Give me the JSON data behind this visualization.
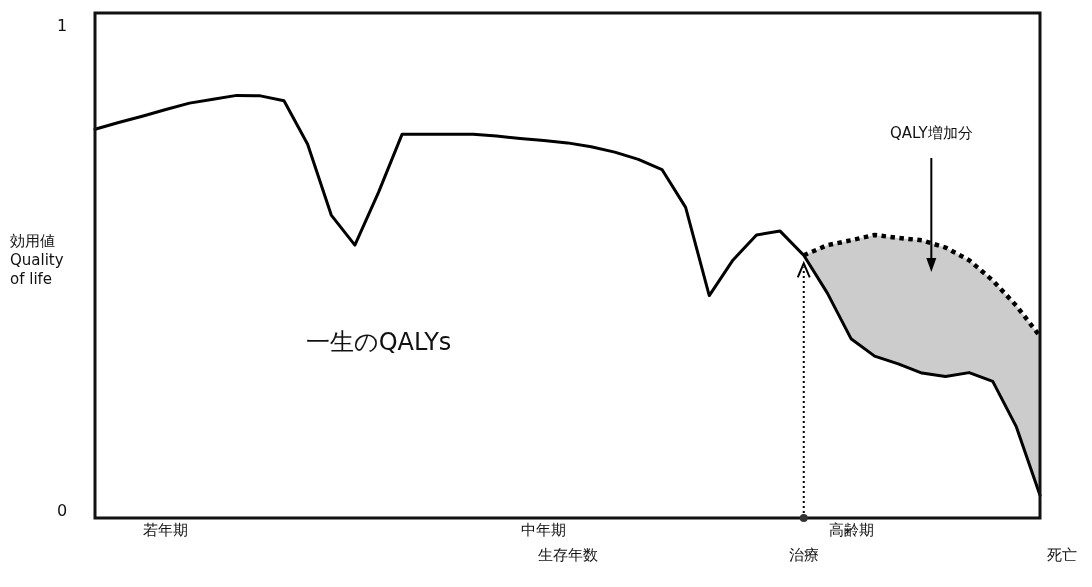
{
  "chart_data": {
    "type": "line",
    "xlabel": "生存年数",
    "ylabel": "効用値\nQuality\nof life",
    "ylim": [
      -0.017,
      1.025
    ],
    "yticks": [
      0,
      1
    ],
    "marker": "none",
    "categories": [
      null,
      null,
      null,
      "若年期",
      null,
      null,
      null,
      null,
      null,
      null,
      null,
      null,
      null,
      null,
      null,
      null,
      null,
      null,
      null,
      "中年期",
      null,
      null,
      null,
      null,
      null,
      null,
      null,
      null,
      null,
      null,
      null,
      null,
      "高齢期",
      null,
      null,
      null,
      null,
      null,
      null,
      null,
      null
    ],
    "series": [
      {
        "color": "#000000",
        "line_style": "solid",
        "values": [
          0.785,
          0.799,
          0.812,
          0.826,
          0.839,
          0.847,
          0.855,
          0.854,
          0.844,
          0.754,
          0.608,
          0.546,
          0.655,
          0.775,
          0.775,
          0.775,
          0.775,
          0.771,
          0.766,
          0.762,
          0.757,
          0.749,
          0.738,
          0.723,
          0.702,
          0.624,
          0.442,
          0.515,
          0.567,
          0.575,
          0.525,
          0.447,
          0.353,
          0.317,
          0.301,
          0.282,
          0.275,
          0.283,
          0.265,
          0.171,
          0.03
        ]
      },
      {
        "color": "#000000",
        "line_style": "dotted",
        "values": [
          null,
          null,
          null,
          null,
          null,
          null,
          null,
          null,
          null,
          null,
          null,
          null,
          null,
          null,
          null,
          null,
          null,
          null,
          null,
          null,
          null,
          null,
          null,
          null,
          null,
          null,
          null,
          null,
          null,
          null,
          0.525,
          0.546,
          0.556,
          0.567,
          0.561,
          0.556,
          0.541,
          0.515,
          0.473,
          0.421,
          0.358
        ],
        "lower": [
          null,
          null,
          null,
          null,
          null,
          null,
          null,
          null,
          null,
          null,
          null,
          null,
          null,
          null,
          null,
          null,
          null,
          null,
          null,
          null,
          null,
          null,
          null,
          null,
          null,
          null,
          null,
          null,
          null,
          null,
          0.525,
          0.447,
          0.353,
          0.317,
          0.301,
          0.282,
          0.275,
          0.283,
          0.265,
          0.171,
          0.03
        ],
        "upper": [
          null,
          null,
          null,
          null,
          null,
          null,
          null,
          null,
          null,
          null,
          null,
          null,
          null,
          null,
          null,
          null,
          null,
          null,
          null,
          null,
          null,
          null,
          null,
          null,
          null,
          null,
          null,
          null,
          null,
          null,
          0.525,
          0.546,
          0.556,
          0.567,
          0.561,
          0.556,
          0.541,
          0.515,
          0.473,
          0.421,
          0.358
        ]
      }
    ],
    "annotations": [
      "QALY増加分",
      "一生のQALYs",
      "治療",
      "死亡"
    ]
  }
}
